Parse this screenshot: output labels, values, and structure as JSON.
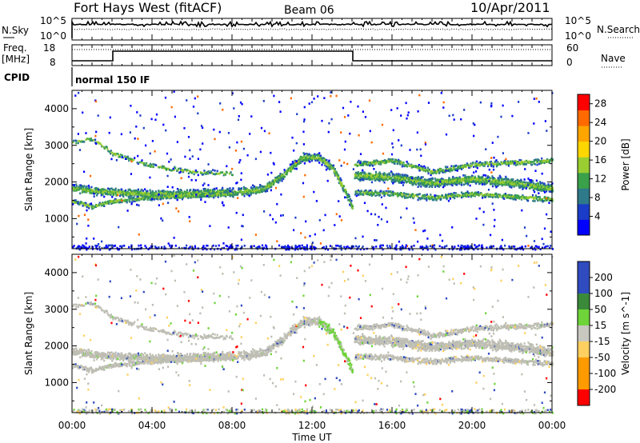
{
  "header": {
    "title": "Fort Hays West (fitACF)",
    "beam": "Beam 06",
    "date": "10/Apr/2011"
  },
  "noise_panel": {
    "left_label": "N.Sky",
    "right_label": "N.Search",
    "y_top_tick": "10^5",
    "y_bottom_tick": "10^0"
  },
  "freq_panel": {
    "left_label_1": "Freq.",
    "left_label_2": "[MHz]",
    "left_ticks": [
      "18",
      "8"
    ],
    "right_label": "Nave",
    "right_ticks": [
      "60",
      "0"
    ]
  },
  "cpid": {
    "label": "CPID",
    "value": "normal 150 IF"
  },
  "x_axis": {
    "label": "Time UT",
    "ticks": [
      "00:00",
      "04:00",
      "08:00",
      "12:00",
      "16:00",
      "20:00",
      "00:00"
    ]
  },
  "y_axis": {
    "label": "Slant Range [km]",
    "ticks": [
      "1000",
      "2000",
      "3000",
      "4000"
    ]
  },
  "chart_data": [
    {
      "type": "heatmap",
      "quantity": "power",
      "xlabel": "Time UT",
      "ylabel": "Slant Range [km]",
      "xlim_hours": [
        0,
        24
      ],
      "ylim_km": [
        180,
        4500
      ],
      "colorbar": {
        "label": "Power [dB]",
        "ticks": [
          "4",
          "8",
          "12",
          "16",
          "20",
          "24",
          "28"
        ],
        "range": [
          0,
          30
        ]
      },
      "echo_bands": [
        {
          "name": "main",
          "points": [
            [
              0,
              1850
            ],
            [
              1,
              1780
            ],
            [
              2,
              1740
            ],
            [
              4,
              1690
            ],
            [
              6,
              1720
            ],
            [
              8,
              1740
            ],
            [
              9.5,
              1820
            ],
            [
              10.5,
              2200
            ],
            [
              11.5,
              2700
            ],
            [
              12.3,
              2700
            ],
            [
              13,
              2400
            ],
            [
              13.7,
              1700
            ],
            [
              14,
              1300
            ]
          ]
        },
        {
          "name": "main_afternoon",
          "points": [
            [
              14,
              2200
            ],
            [
              16,
              2150
            ],
            [
              18,
              2000
            ],
            [
              20,
              2100
            ],
            [
              22,
              2000
            ],
            [
              24,
              1850
            ]
          ]
        },
        {
          "name": "lower",
          "points": [
            [
              0,
              1500
            ],
            [
              1,
              1350
            ],
            [
              2,
              1500
            ],
            [
              4,
              1600
            ],
            [
              6,
              1650
            ],
            [
              8,
              1700
            ]
          ]
        },
        {
          "name": "lower_afternoon",
          "points": [
            [
              14,
              1750
            ],
            [
              16,
              1700
            ],
            [
              18,
              1600
            ],
            [
              20,
              1700
            ],
            [
              22,
              1620
            ],
            [
              24,
              1550
            ]
          ]
        },
        {
          "name": "upper",
          "points": [
            [
              0,
              3100
            ],
            [
              1,
              3200
            ],
            [
              2,
              2800
            ],
            [
              4,
              2450
            ],
            [
              6,
              2300
            ],
            [
              8,
              2250
            ]
          ]
        },
        {
          "name": "upper_afternoon",
          "points": [
            [
              14,
              2500
            ],
            [
              16,
              2600
            ],
            [
              18,
              2300
            ],
            [
              20,
              2500
            ],
            [
              22,
              2550
            ],
            [
              24,
              2600
            ]
          ]
        }
      ]
    },
    {
      "type": "heatmap",
      "quantity": "velocity",
      "xlabel": "Time UT",
      "ylabel": "Slant Range [km]",
      "xlim_hours": [
        0,
        24
      ],
      "ylim_km": [
        180,
        4500
      ],
      "colorbar": {
        "label": "Velocity [m s^-1]",
        "ticks": [
          "200",
          "100",
          "50",
          "15",
          "-15",
          "-50",
          "-100",
          "-200"
        ],
        "range": [
          -250,
          250
        ]
      }
    }
  ],
  "colors": {
    "power_scale": [
      "#0000ff",
      "#1a3cc8",
      "#2e7a8a",
      "#3aa14a",
      "#9acd32",
      "#ffd700",
      "#ffa500",
      "#ff6a00",
      "#ff0000"
    ],
    "velocity_scale": [
      "#2f4bbf",
      "#3a8a3a",
      "#6fd43a",
      "#c8c8c0",
      "#ffd060",
      "#ff9a00",
      "#ff0000"
    ],
    "ground_scatter": "#bebeb4"
  }
}
